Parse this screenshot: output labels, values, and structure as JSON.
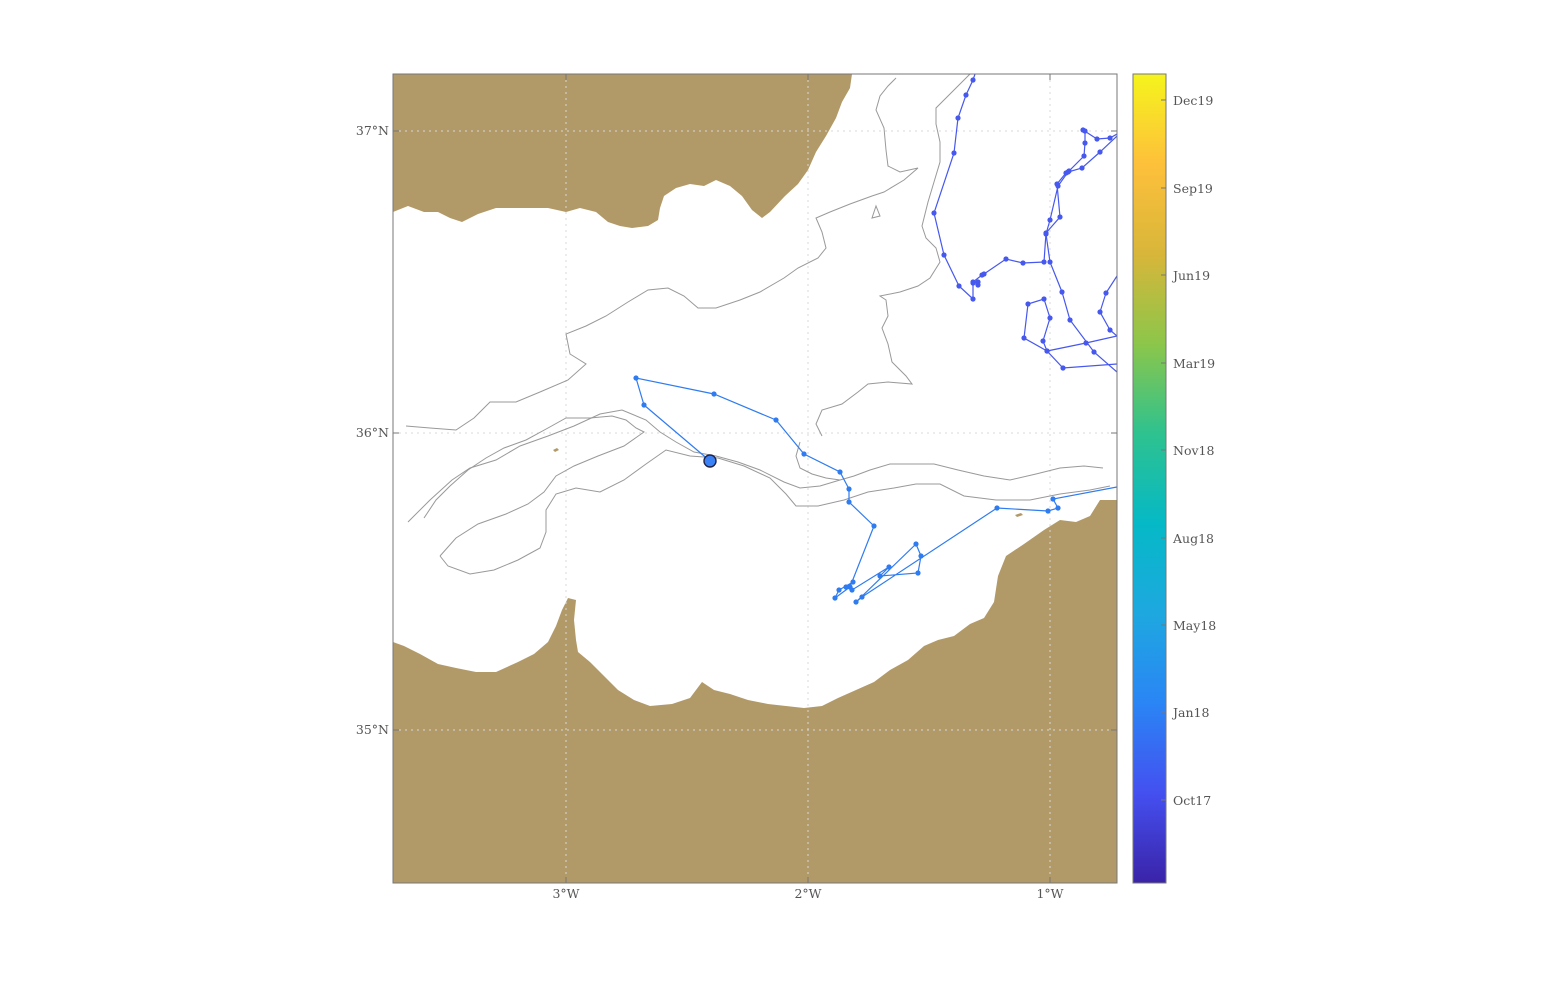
{
  "map": {
    "axes": {
      "lon_ticks": [
        {
          "label": "3°W"
        },
        {
          "label": "2°W"
        },
        {
          "label": "1°W"
        }
      ],
      "lat_ticks": [
        {
          "label": "37°N"
        },
        {
          "label": "36°N"
        },
        {
          "label": "35°N"
        }
      ]
    },
    "colors": {
      "land": "#b29968",
      "isobath": "#999999",
      "grid": "#d8d8d8",
      "frame": "#777777"
    },
    "current_position": {
      "color": "#3b82f6"
    }
  },
  "colorbar": {
    "gradient": [
      "#3a23a8",
      "#4450f0",
      "#2a85f5",
      "#1ea8e0",
      "#05b9c6",
      "#2ec28f",
      "#8cc64a",
      "#d8b63a",
      "#fec03b",
      "#f5f41c"
    ],
    "ticks": [
      {
        "label": "Dec19"
      },
      {
        "label": "Sep19"
      },
      {
        "label": "Jun19"
      },
      {
        "label": "Mar19"
      },
      {
        "label": "Nov18"
      },
      {
        "label": "Aug18"
      },
      {
        "label": "May18"
      },
      {
        "label": "Jan18"
      },
      {
        "label": "Oct17"
      }
    ]
  }
}
